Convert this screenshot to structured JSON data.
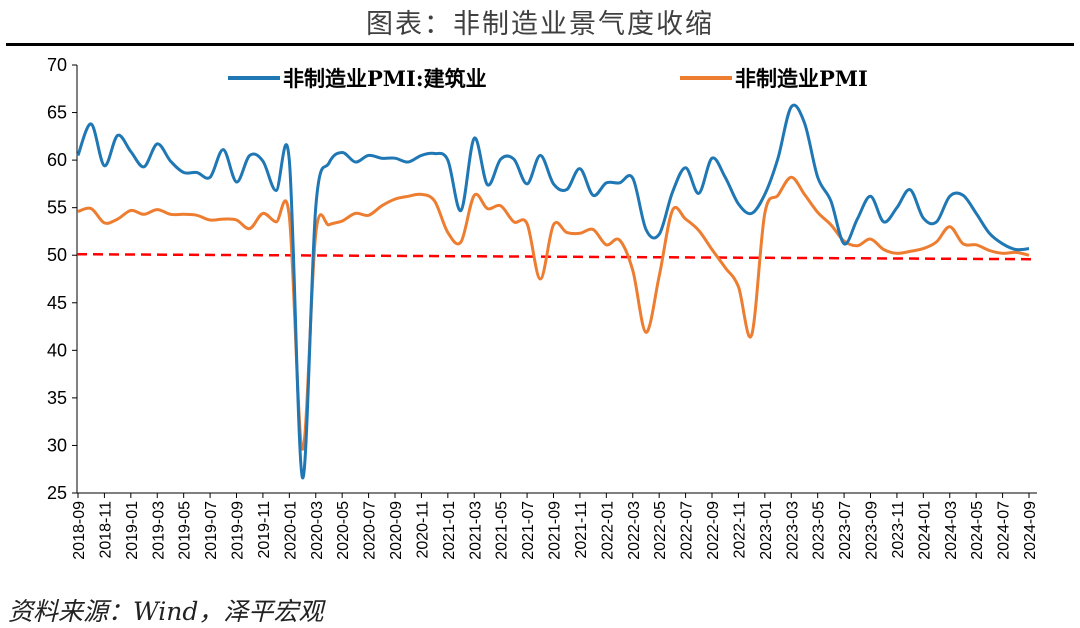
{
  "title": "图表：非制造业景气度收缩",
  "source": "资料来源：Wind，泽平宏观",
  "chart_data": {
    "type": "line",
    "ylim": [
      25,
      70
    ],
    "yticks": [
      25,
      30,
      35,
      40,
      45,
      50,
      55,
      60,
      65,
      70
    ],
    "x": [
      "2018-09",
      "2018-10",
      "2018-11",
      "2018-12",
      "2019-01",
      "2019-02",
      "2019-03",
      "2019-04",
      "2019-05",
      "2019-06",
      "2019-07",
      "2019-08",
      "2019-09",
      "2019-10",
      "2019-11",
      "2019-12",
      "2020-01",
      "2020-02",
      "2020-03",
      "2020-04",
      "2020-05",
      "2020-06",
      "2020-07",
      "2020-08",
      "2020-09",
      "2020-10",
      "2020-11",
      "2020-12",
      "2021-01",
      "2021-02",
      "2021-03",
      "2021-04",
      "2021-05",
      "2021-06",
      "2021-07",
      "2021-08",
      "2021-09",
      "2021-10",
      "2021-11",
      "2021-12",
      "2022-01",
      "2022-02",
      "2022-03",
      "2022-04",
      "2022-05",
      "2022-06",
      "2022-07",
      "2022-08",
      "2022-09",
      "2022-10",
      "2022-11",
      "2022-12",
      "2023-01",
      "2023-02",
      "2023-03",
      "2023-04",
      "2023-05",
      "2023-06",
      "2023-07",
      "2023-08",
      "2023-09",
      "2023-10",
      "2023-11",
      "2023-12",
      "2024-01",
      "2024-02",
      "2024-03",
      "2024-04",
      "2024-05",
      "2024-06",
      "2024-07",
      "2024-08",
      "2024-09"
    ],
    "xtick_labels": [
      "2018-09",
      "2018-11",
      "2019-01",
      "2019-03",
      "2019-05",
      "2019-07",
      "2019-09",
      "2019-11",
      "2020-01",
      "2020-03",
      "2020-05",
      "2020-07",
      "2020-09",
      "2020-11",
      "2021-01",
      "2021-03",
      "2021-05",
      "2021-07",
      "2021-09",
      "2021-11",
      "2022-01",
      "2022-03",
      "2022-05",
      "2022-07",
      "2022-09",
      "2022-11",
      "2023-01",
      "2023-03",
      "2023-05",
      "2023-07",
      "2023-09",
      "2023-11",
      "2024-01",
      "2024-03",
      "2024-05",
      "2024-07",
      "2024-09"
    ],
    "series": [
      {
        "name": "非制造业PMI:建筑业",
        "color": "#1f77b4",
        "values": [
          60.5,
          63.8,
          59.4,
          62.6,
          60.9,
          59.3,
          61.7,
          59.9,
          58.7,
          58.7,
          58.2,
          61.1,
          57.7,
          60.5,
          59.9,
          56.8,
          60.0,
          26.6,
          55.1,
          59.7,
          60.8,
          59.8,
          60.5,
          60.2,
          60.2,
          59.8,
          60.5,
          60.7,
          60.0,
          54.7,
          62.3,
          57.4,
          60.1,
          60.1,
          57.5,
          60.5,
          57.5,
          56.9,
          59.1,
          56.3,
          57.6,
          57.6,
          58.1,
          52.7,
          52.2,
          56.6,
          59.2,
          56.5,
          60.2,
          58.2,
          55.4,
          54.4,
          56.4,
          60.2,
          65.6,
          63.9,
          58.2,
          55.7,
          51.2,
          53.8,
          56.2,
          53.5,
          55.0,
          56.9,
          53.9,
          53.5,
          56.2,
          56.3,
          54.4,
          52.3,
          51.2,
          50.6,
          50.7
        ]
      },
      {
        "name": "非制造业PMI",
        "color": "#ed7d31",
        "values": [
          54.6,
          54.9,
          53.4,
          53.8,
          54.7,
          54.3,
          54.8,
          54.3,
          54.3,
          54.2,
          53.7,
          53.8,
          53.7,
          52.8,
          54.4,
          53.5,
          54.1,
          29.6,
          52.3,
          53.2,
          53.6,
          54.4,
          54.2,
          55.2,
          55.9,
          56.2,
          56.4,
          55.7,
          52.4,
          51.4,
          56.3,
          54.9,
          55.2,
          53.5,
          53.3,
          47.5,
          53.2,
          52.4,
          52.3,
          52.7,
          51.1,
          51.6,
          48.4,
          41.9,
          47.8,
          54.7,
          53.8,
          52.6,
          50.6,
          48.7,
          46.7,
          41.6,
          54.4,
          56.3,
          58.2,
          56.4,
          54.5,
          53.2,
          51.5,
          51.0,
          51.7,
          50.6,
          50.2,
          50.4,
          50.7,
          51.4,
          53.0,
          51.2,
          51.1,
          50.5,
          50.2,
          50.3,
          50.0
        ]
      }
    ],
    "reference_line": {
      "value": 50,
      "color": "#ff0000",
      "style": "dashed"
    },
    "legend": [
      {
        "label": "非制造业PMI:建筑业",
        "color": "#1f77b4"
      },
      {
        "label": "非制造业PMI",
        "color": "#ed7d31"
      }
    ],
    "legend_position": "top"
  }
}
